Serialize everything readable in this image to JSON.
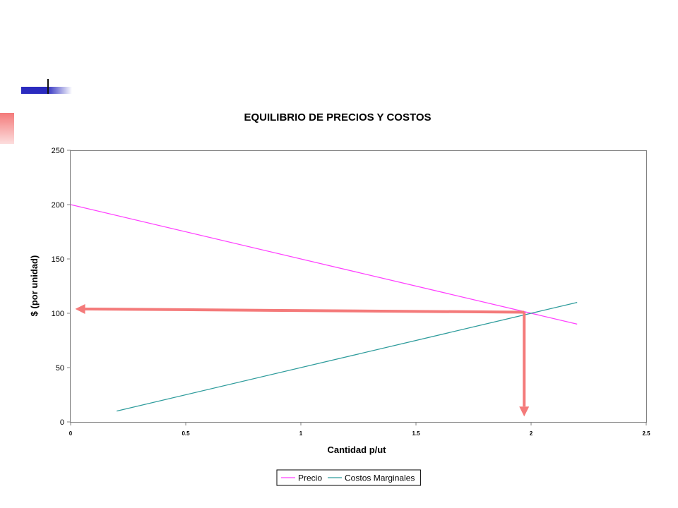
{
  "chart_data": {
    "type": "line",
    "title": "EQUILIBRIO DE PRECIOS Y COSTOS",
    "xlabel": "Cantidad p/ut",
    "ylabel": "$ (por unidad)",
    "xlim": [
      0,
      2.5
    ],
    "ylim": [
      0,
      250
    ],
    "x_ticks": [
      "0",
      "0.5",
      "1",
      "1.5",
      "2",
      "2.5"
    ],
    "x_tick_values": [
      0,
      0.5,
      1,
      1.5,
      2,
      2.5
    ],
    "y_ticks": [
      "0",
      "50",
      "100",
      "150",
      "200",
      "250"
    ],
    "y_tick_values": [
      0,
      50,
      100,
      150,
      200,
      250
    ],
    "grid": false,
    "legend_position": "bottom",
    "series": [
      {
        "name": "Precio",
        "color": "#ff40ff",
        "x": [
          0,
          2.2
        ],
        "y": [
          200,
          90
        ]
      },
      {
        "name": "Costos Marginales",
        "color": "#2e9c9c",
        "x": [
          0.2,
          2.2
        ],
        "y": [
          10,
          110
        ]
      }
    ],
    "annotations": [
      {
        "kind": "arrow",
        "color": "#f47a7a",
        "from": [
          1.97,
          101
        ],
        "to": [
          0.02,
          104
        ]
      },
      {
        "kind": "arrow",
        "color": "#f47a7a",
        "from": [
          1.97,
          101
        ],
        "to": [
          1.97,
          5
        ]
      }
    ]
  },
  "decor": {
    "accent_blue": "#2b2bbf",
    "accent_red": "#f47a7a"
  }
}
